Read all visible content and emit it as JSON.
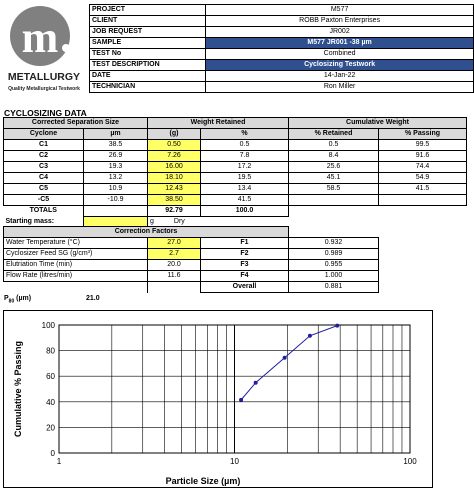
{
  "logo": {
    "initial": "m",
    "brand": "METALLURGY",
    "tagline": "Quality Metallurgical Testwork"
  },
  "info": [
    {
      "label": "PROJECT",
      "value": "M577",
      "style": "plain"
    },
    {
      "label": "CLIENT",
      "value": "ROBB Paxton Enterprises",
      "style": "plain"
    },
    {
      "label": "JOB REQUEST",
      "value": "JR002",
      "style": "plain"
    },
    {
      "label": "SAMPLE",
      "value": "M577 JR001 -38 µm",
      "style": "blue"
    },
    {
      "label": "TEST No",
      "value": "Combined",
      "style": "plain"
    },
    {
      "label": "TEST DESCRIPTION",
      "value": "Cyclosizing Testwork",
      "style": "blue"
    },
    {
      "label": "DATE",
      "value": "14-Jan-22",
      "style": "plain"
    },
    {
      "label": "TECHNICIAN",
      "value": "Ron Miller",
      "style": "plain"
    }
  ],
  "section_title": "CYCLOSIZING DATA",
  "table": {
    "group_headers": [
      "Corrected Separation Size",
      "Weight Retained",
      "Cumulative Weight"
    ],
    "col_headers": [
      "Cyclone",
      "µm",
      "(g)",
      "%",
      "% Retained",
      "% Passing"
    ],
    "rows": [
      {
        "cyclone": "C1",
        "um": "38.5",
        "g": "0.50",
        "pct": "0.5",
        "ret": "0.5",
        "pass": "99.5"
      },
      {
        "cyclone": "C2",
        "um": "26.9",
        "g": "7.26",
        "pct": "7.8",
        "ret": "8.4",
        "pass": "91.6"
      },
      {
        "cyclone": "C3",
        "um": "19.3",
        "g": "16.00",
        "pct": "17.2",
        "ret": "25.6",
        "pass": "74.4"
      },
      {
        "cyclone": "C4",
        "um": "13.2",
        "g": "18.10",
        "pct": "19.5",
        "ret": "45.1",
        "pass": "54.9"
      },
      {
        "cyclone": "C5",
        "um": "10.9",
        "g": "12.43",
        "pct": "13.4",
        "ret": "58.5",
        "pass": "41.5"
      },
      {
        "cyclone": "-C5",
        "um": "-10.9",
        "g": "38.50",
        "pct": "41.5",
        "ret": "",
        "pass": ""
      }
    ],
    "totals": {
      "label": "TOTALS",
      "g": "92.79",
      "pct": "100.0"
    },
    "starting_mass": {
      "label": "Starting mass:",
      "unit": "g",
      "state": "Dry"
    }
  },
  "correction": {
    "title": "Correction Factors",
    "rows": [
      {
        "label": "Water Temperature (°C)",
        "value": "27.0",
        "yellow": true,
        "factor": "F1",
        "fval": "0.932"
      },
      {
        "label": "Cyclosizer Feed SG (g/cm³)",
        "value": "2.7",
        "yellow": true,
        "factor": "F2",
        "fval": "0.989"
      },
      {
        "label": "Elutriation Time (min)",
        "value": "20.0",
        "yellow": false,
        "factor": "F3",
        "fval": "0.955"
      },
      {
        "label": "Flow Rate (litres/min)",
        "value": "11.6",
        "yellow": false,
        "factor": "F4",
        "fval": "1.000"
      }
    ],
    "overall": {
      "label": "Overall",
      "value": "0.881"
    }
  },
  "p80": {
    "label": "P80 (µm)",
    "value": "21.0"
  },
  "colors": {
    "series": "#1f1fa0",
    "header_bg": "#d9d9d9",
    "input_bg": "#ffff66",
    "blue_bg": "#2f4f8f"
  },
  "chart_data": {
    "type": "scatter",
    "mode": "line+markers",
    "x_scale": "log",
    "xlim": [
      1,
      100
    ],
    "ylim": [
      0,
      100
    ],
    "x_ticks": [
      "1",
      "10",
      "100"
    ],
    "y_ticks": [
      "0",
      "20",
      "40",
      "60",
      "80",
      "100"
    ],
    "xlabel": "Particle Size (µm)",
    "ylabel": "Cumulative % Passing",
    "grid": true,
    "series": [
      {
        "x": [
          10.9,
          13.2,
          19.3,
          26.9,
          38.5
        ],
        "y": [
          41.5,
          54.9,
          74.4,
          91.6,
          99.5
        ]
      }
    ]
  }
}
